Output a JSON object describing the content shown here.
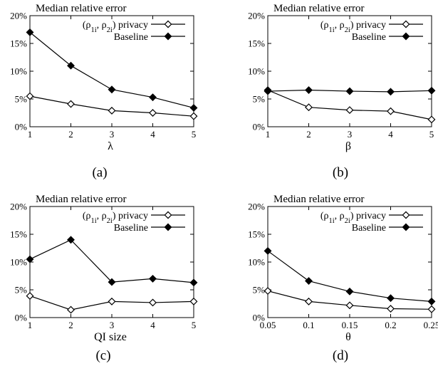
{
  "chart_data": [
    {
      "type": "line",
      "panel": "(a)",
      "title": "Median relative error",
      "xlabel": "λ",
      "ylabel": "",
      "x": [
        1,
        2,
        3,
        4,
        5
      ],
      "x_tick_labels": [
        "1",
        "2",
        "3",
        "4",
        "5"
      ],
      "y_tick_labels": [
        "0%",
        "5%",
        "10%",
        "15%",
        "20%"
      ],
      "xlim": [
        1,
        5
      ],
      "ylim": [
        0,
        20
      ],
      "grid": false,
      "legend_placement": "top-right",
      "series": [
        {
          "name": "(ρ1i, ρ2i) privacy",
          "name_base": "(ρ",
          "sub1": "1i",
          "name_mid": ", ρ",
          "sub2": "2i",
          "name_tail": ") privacy",
          "marker": "open-diamond",
          "values": [
            5.5,
            4.1,
            2.9,
            2.5,
            1.9
          ]
        },
        {
          "name": "Baseline",
          "marker": "filled-diamond",
          "values": [
            17.0,
            11.0,
            6.7,
            5.3,
            3.4
          ]
        }
      ]
    },
    {
      "type": "line",
      "panel": "(b)",
      "title": "Median relative error",
      "xlabel": "β",
      "ylabel": "",
      "x": [
        1,
        2,
        3,
        4,
        5
      ],
      "x_tick_labels": [
        "1",
        "2",
        "3",
        "4",
        "5"
      ],
      "y_tick_labels": [
        "0%",
        "5%",
        "10%",
        "15%",
        "20%"
      ],
      "xlim": [
        1,
        5
      ],
      "ylim": [
        0,
        20
      ],
      "grid": false,
      "legend_placement": "top-right",
      "series": [
        {
          "name": "(ρ1i, ρ2i) privacy",
          "name_base": "(ρ",
          "sub1": "1i",
          "name_mid": ", ρ",
          "sub2": "2i",
          "name_tail": ") privacy",
          "marker": "open-diamond",
          "values": [
            6.6,
            3.5,
            3.0,
            2.8,
            1.3
          ]
        },
        {
          "name": "Baseline",
          "marker": "filled-diamond",
          "values": [
            6.4,
            6.6,
            6.4,
            6.3,
            6.5
          ]
        }
      ]
    },
    {
      "type": "line",
      "panel": "(c)",
      "title": "Median relative error",
      "xlabel": "QI size",
      "ylabel": "",
      "x": [
        1,
        2,
        3,
        4,
        5
      ],
      "x_tick_labels": [
        "1",
        "2",
        "3",
        "4",
        "5"
      ],
      "y_tick_labels": [
        "0%",
        "5%",
        "10%",
        "15%",
        "20%"
      ],
      "xlim": [
        1,
        5
      ],
      "ylim": [
        0,
        20
      ],
      "grid": false,
      "legend_placement": "top-right",
      "series": [
        {
          "name": "(ρ1i, ρ2i) privacy",
          "name_base": "(ρ",
          "sub1": "1i",
          "name_mid": ", ρ",
          "sub2": "2i",
          "name_tail": ") privacy",
          "marker": "open-diamond",
          "values": [
            3.9,
            1.4,
            2.9,
            2.7,
            2.9
          ]
        },
        {
          "name": "Baseline",
          "marker": "filled-diamond",
          "values": [
            10.5,
            14.0,
            6.4,
            7.0,
            6.3
          ]
        }
      ]
    },
    {
      "type": "line",
      "panel": "(d)",
      "title": "Median relative error",
      "xlabel": "θ",
      "ylabel": "",
      "x": [
        0.05,
        0.1,
        0.15,
        0.2,
        0.25
      ],
      "x_tick_labels": [
        "0.05",
        "0.1",
        "0.15",
        "0.2",
        "0.25"
      ],
      "y_tick_labels": [
        "0%",
        "5%",
        "10%",
        "15%",
        "20%"
      ],
      "xlim": [
        0.05,
        0.25
      ],
      "ylim": [
        0,
        20
      ],
      "grid": false,
      "legend_placement": "top-right",
      "series": [
        {
          "name": "(ρ1i, ρ2i) privacy",
          "name_base": "(ρ",
          "sub1": "1i",
          "name_mid": ", ρ",
          "sub2": "2i",
          "name_tail": ") privacy",
          "marker": "open-diamond",
          "values": [
            4.8,
            2.9,
            2.2,
            1.6,
            1.5
          ]
        },
        {
          "name": "Baseline",
          "marker": "filled-diamond",
          "values": [
            12.0,
            6.6,
            4.7,
            3.5,
            2.9
          ]
        }
      ]
    }
  ]
}
